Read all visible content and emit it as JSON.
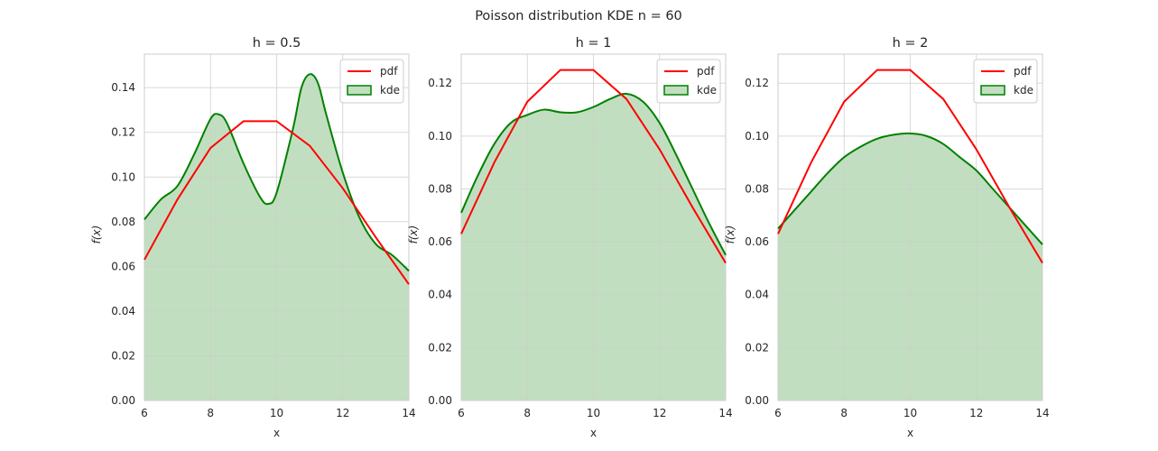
{
  "figure": {
    "suptitle": "Poisson distribution KDE n = 60"
  },
  "colors": {
    "pdf": "#ff0000",
    "kde_line": "#008000",
    "kde_fill": "#c1dfc0",
    "grid": "#cccccc",
    "spine": "#cccccc"
  },
  "chart_data": [
    {
      "type": "line",
      "title": "h = 0.5",
      "xlabel": "x",
      "ylabel": "f(x)",
      "xlim": [
        6,
        14
      ],
      "ylim": [
        0,
        0.155
      ],
      "xticks": [
        "6",
        "8",
        "10",
        "12",
        "14"
      ],
      "yticks": [
        "0.00",
        "0.02",
        "0.04",
        "0.06",
        "0.08",
        "0.10",
        "0.12",
        "0.14"
      ],
      "grid": true,
      "legend": {
        "position": "top-right",
        "entries": [
          "pdf",
          "kde"
        ]
      },
      "series": [
        {
          "name": "pdf",
          "style": "line",
          "x": [
            6,
            7,
            8,
            9,
            10,
            11,
            12,
            13,
            14
          ],
          "y": [
            0.063,
            0.09,
            0.113,
            0.125,
            0.125,
            0.114,
            0.095,
            0.073,
            0.052
          ]
        },
        {
          "name": "kde",
          "style": "filled",
          "x": [
            6,
            6.5,
            7,
            7.5,
            8,
            8.25,
            8.5,
            9,
            9.5,
            9.75,
            10,
            10.5,
            10.75,
            11,
            11.25,
            11.5,
            12,
            12.5,
            13,
            13.5,
            14
          ],
          "y": [
            0.081,
            0.09,
            0.096,
            0.11,
            0.126,
            0.128,
            0.124,
            0.106,
            0.091,
            0.088,
            0.093,
            0.122,
            0.14,
            0.146,
            0.142,
            0.128,
            0.102,
            0.082,
            0.07,
            0.065,
            0.058
          ]
        }
      ]
    },
    {
      "type": "line",
      "title": "h = 1",
      "xlabel": "x",
      "ylabel": "f(x)",
      "xlim": [
        6,
        14
      ],
      "ylim": [
        0,
        0.131
      ],
      "xticks": [
        "6",
        "8",
        "10",
        "12",
        "14"
      ],
      "yticks": [
        "0.00",
        "0.02",
        "0.04",
        "0.06",
        "0.08",
        "0.10",
        "0.12"
      ],
      "grid": true,
      "legend": {
        "position": "top-right",
        "entries": [
          "pdf",
          "kde"
        ]
      },
      "series": [
        {
          "name": "pdf",
          "style": "line",
          "x": [
            6,
            7,
            8,
            9,
            10,
            11,
            12,
            13,
            14
          ],
          "y": [
            0.063,
            0.09,
            0.113,
            0.125,
            0.125,
            0.114,
            0.095,
            0.073,
            0.052
          ]
        },
        {
          "name": "kde",
          "style": "filled",
          "x": [
            6,
            6.5,
            7,
            7.5,
            8,
            8.5,
            9,
            9.5,
            10,
            10.5,
            11,
            11.5,
            12,
            12.5,
            13,
            13.5,
            14
          ],
          "y": [
            0.071,
            0.085,
            0.097,
            0.105,
            0.108,
            0.11,
            0.109,
            0.109,
            0.111,
            0.114,
            0.116,
            0.113,
            0.105,
            0.093,
            0.08,
            0.067,
            0.055
          ]
        }
      ]
    },
    {
      "type": "line",
      "title": "h = 2",
      "xlabel": "x",
      "ylabel": "f(x)",
      "xlim": [
        6,
        14
      ],
      "ylim": [
        0,
        0.131
      ],
      "xticks": [
        "6",
        "8",
        "10",
        "12",
        "14"
      ],
      "yticks": [
        "0.00",
        "0.02",
        "0.04",
        "0.06",
        "0.08",
        "0.10",
        "0.12"
      ],
      "grid": true,
      "legend": {
        "position": "top-right",
        "entries": [
          "pdf",
          "kde"
        ]
      },
      "series": [
        {
          "name": "pdf",
          "style": "line",
          "x": [
            6,
            7,
            8,
            9,
            10,
            11,
            12,
            13,
            14
          ],
          "y": [
            0.063,
            0.09,
            0.113,
            0.125,
            0.125,
            0.114,
            0.095,
            0.073,
            0.052
          ]
        },
        {
          "name": "kde",
          "style": "filled",
          "x": [
            6,
            6.5,
            7,
            7.5,
            8,
            8.5,
            9,
            9.5,
            10,
            10.5,
            11,
            11.5,
            12,
            12.5,
            13,
            13.5,
            14
          ],
          "y": [
            0.065,
            0.072,
            0.079,
            0.086,
            0.092,
            0.096,
            0.099,
            0.1005,
            0.101,
            0.1,
            0.097,
            0.092,
            0.087,
            0.08,
            0.073,
            0.066,
            0.059
          ]
        }
      ]
    }
  ]
}
